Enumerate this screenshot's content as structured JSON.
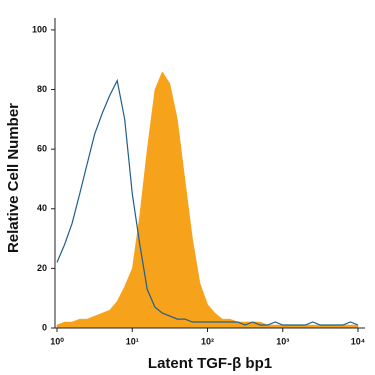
{
  "chart_data": {
    "type": "histogram-overlay",
    "xlabel": "Latent TGF-β bp1",
    "ylabel": "Relative Cell Number",
    "log_x": true,
    "grid": false,
    "xlim": [
      0.94,
      12400
    ],
    "ylim": [
      0,
      104
    ],
    "xticks": [
      {
        "value": 1,
        "label": "10⁰"
      },
      {
        "value": 10,
        "label": "10¹"
      },
      {
        "value": 100,
        "label": "10²"
      },
      {
        "value": 1000,
        "label": "10³"
      },
      {
        "value": 10000,
        "label": "10⁴"
      }
    ],
    "yticks": [
      0,
      20,
      40,
      60,
      80,
      100
    ],
    "x": [
      1,
      1.26,
      1.58,
      2,
      2.51,
      3.16,
      3.98,
      5.01,
      6.31,
      7.94,
      10,
      12.6,
      15.8,
      20,
      25.1,
      31.6,
      39.8,
      50.1,
      63.1,
      79.4,
      100,
      126,
      158,
      200,
      251,
      316,
      398,
      501,
      631,
      794,
      1000,
      1259,
      1585,
      1995,
      2512,
      3162,
      3981,
      5012,
      6310,
      7943,
      10000
    ],
    "series": [
      {
        "style": "filled",
        "color": "#f7a21b",
        "values": [
          1,
          2,
          2,
          3,
          3,
          4,
          5,
          6,
          9,
          14,
          20,
          38,
          60,
          80,
          86,
          82,
          70,
          50,
          30,
          15,
          8,
          5,
          3,
          3,
          2,
          2,
          2,
          2,
          1,
          1,
          1,
          1,
          1,
          1,
          1,
          1,
          1,
          1,
          1,
          1,
          1
        ]
      },
      {
        "style": "outline",
        "color": "#1f5f8b",
        "values": [
          22,
          28,
          35,
          45,
          55,
          65,
          72,
          78,
          83,
          70,
          45,
          28,
          13,
          7,
          5,
          4,
          3,
          3,
          2,
          2,
          2,
          2,
          2,
          2,
          2,
          1,
          2,
          1,
          1,
          2,
          1,
          1,
          1,
          1,
          2,
          1,
          1,
          1,
          1,
          2,
          1
        ]
      }
    ]
  }
}
